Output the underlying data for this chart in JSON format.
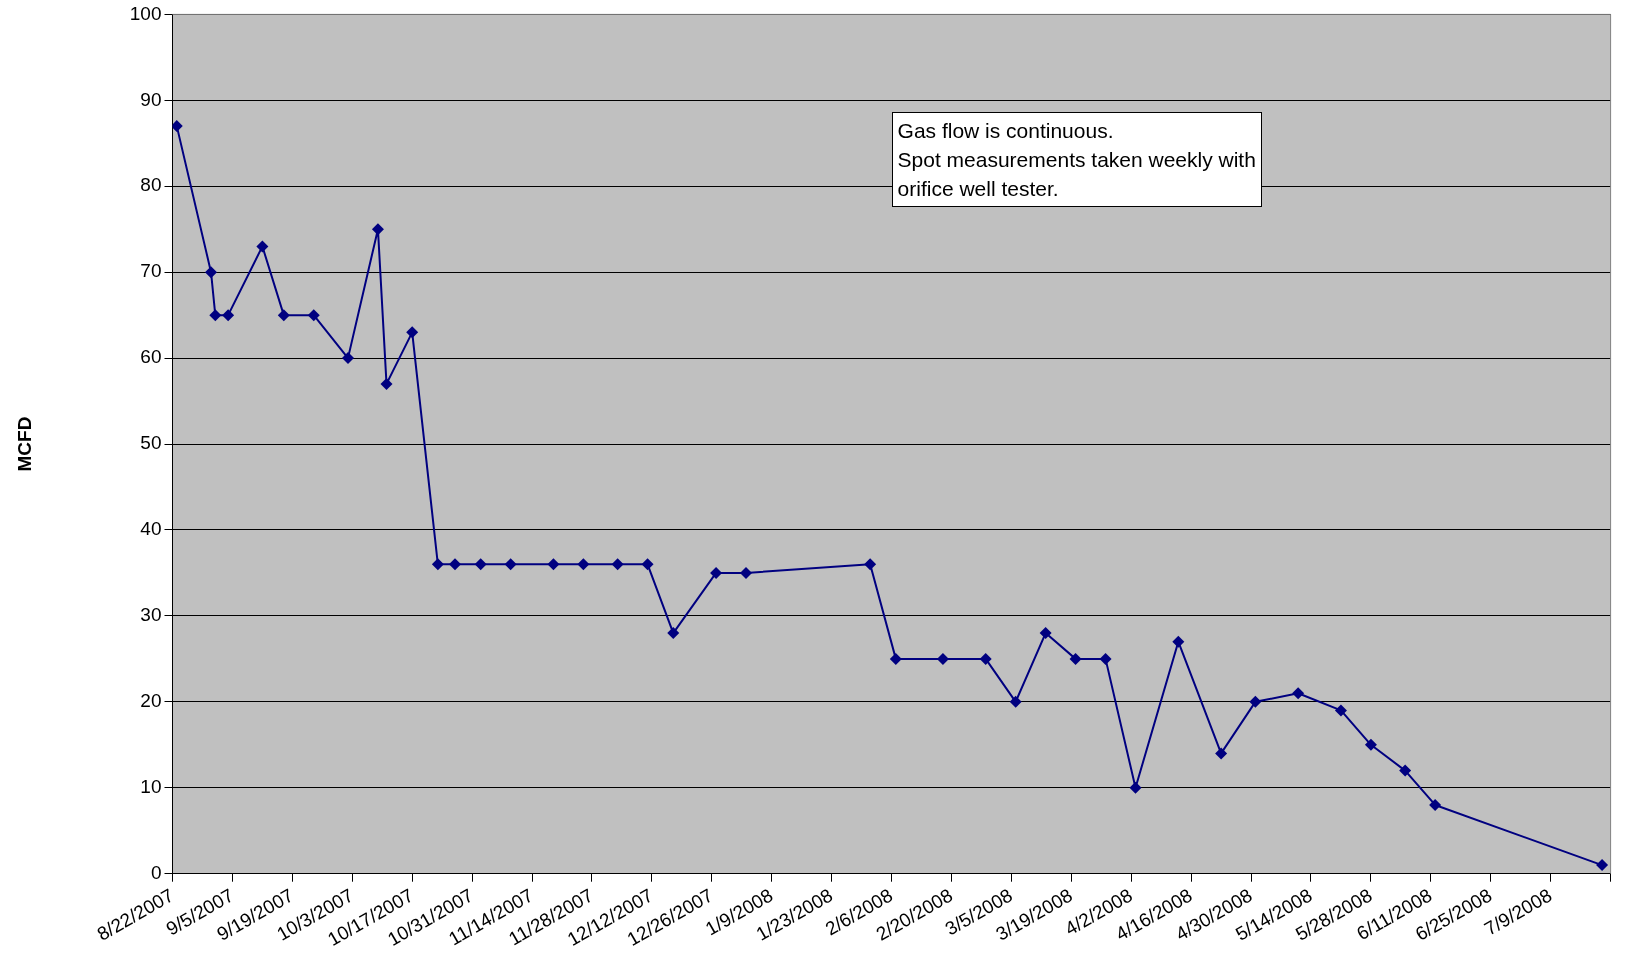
{
  "chart_data": {
    "type": "line",
    "ylabel": "MCFD",
    "x": [
      "2007-08-23",
      "2007-08-31",
      "2007-09-01",
      "2007-09-04",
      "2007-09-12",
      "2007-09-17",
      "2007-09-24",
      "2007-10-02",
      "2007-10-09",
      "2007-10-11",
      "2007-10-17",
      "2007-10-23",
      "2007-10-27",
      "2007-11-02",
      "2007-11-09",
      "2007-11-19",
      "2007-11-26",
      "2007-12-04",
      "2007-12-11",
      "2007-12-17",
      "2007-12-27",
      "2008-01-03",
      "2008-02-01",
      "2008-02-07",
      "2008-02-18",
      "2008-02-28",
      "2008-03-06",
      "2008-03-13",
      "2008-03-20",
      "2008-03-27",
      "2008-04-03",
      "2008-04-13",
      "2008-04-23",
      "2008-05-01",
      "2008-05-11",
      "2008-05-21",
      "2008-05-28",
      "2008-06-05",
      "2008-06-12",
      "2008-07-21"
    ],
    "series": [
      {
        "color": "#000080",
        "values": [
          87,
          70,
          65,
          65,
          73,
          65,
          65,
          60,
          75,
          57,
          63,
          36,
          36,
          36,
          36,
          36,
          36,
          36,
          36,
          28,
          35,
          35,
          36,
          25,
          25,
          25,
          20,
          28,
          25,
          25,
          10,
          27,
          14,
          20,
          21,
          19,
          15,
          12,
          8,
          1
        ]
      }
    ],
    "xlim": [
      "2007-08-22",
      "2008-07-23"
    ],
    "xticks": [
      {
        "value": "2007-08-22",
        "label": "8/22/2007"
      },
      {
        "value": "2007-09-05",
        "label": "9/5/2007"
      },
      {
        "value": "2007-09-19",
        "label": "9/19/2007"
      },
      {
        "value": "2007-10-03",
        "label": "10/3/2007"
      },
      {
        "value": "2007-10-17",
        "label": "10/17/2007"
      },
      {
        "value": "2007-10-31",
        "label": "10/31/2007"
      },
      {
        "value": "2007-11-14",
        "label": "11/14/2007"
      },
      {
        "value": "2007-11-28",
        "label": "11/28/2007"
      },
      {
        "value": "2007-12-12",
        "label": "12/12/2007"
      },
      {
        "value": "2007-12-26",
        "label": "12/26/2007"
      },
      {
        "value": "2008-01-09",
        "label": "1/9/2008"
      },
      {
        "value": "2008-01-23",
        "label": "1/23/2008"
      },
      {
        "value": "2008-02-06",
        "label": "2/6/2008"
      },
      {
        "value": "2008-02-20",
        "label": "2/20/2008"
      },
      {
        "value": "2008-03-05",
        "label": "3/5/2008"
      },
      {
        "value": "2008-03-19",
        "label": "3/19/2008"
      },
      {
        "value": "2008-04-02",
        "label": "4/2/2008"
      },
      {
        "value": "2008-04-16",
        "label": "4/16/2008"
      },
      {
        "value": "2008-04-30",
        "label": "4/30/2008"
      },
      {
        "value": "2008-05-14",
        "label": "5/14/2008"
      },
      {
        "value": "2008-05-28",
        "label": "5/28/2008"
      },
      {
        "value": "2008-06-11",
        "label": "6/11/2008"
      },
      {
        "value": "2008-06-25",
        "label": "6/25/2008"
      },
      {
        "value": "2008-07-09",
        "label": "7/9/2008"
      },
      {
        "value": "2008-07-23",
        "label": null
      }
    ],
    "ylim": [
      0,
      100
    ],
    "yticks": [
      0,
      10,
      20,
      30,
      40,
      50,
      60,
      70,
      80,
      90,
      100
    ],
    "grid": "y",
    "legend": false,
    "marker": "diamond",
    "line_style": "solid",
    "annotations": [
      "Gas flow is continuous.\nSpot measurements taken weekly with\norifice well tester."
    ]
  }
}
